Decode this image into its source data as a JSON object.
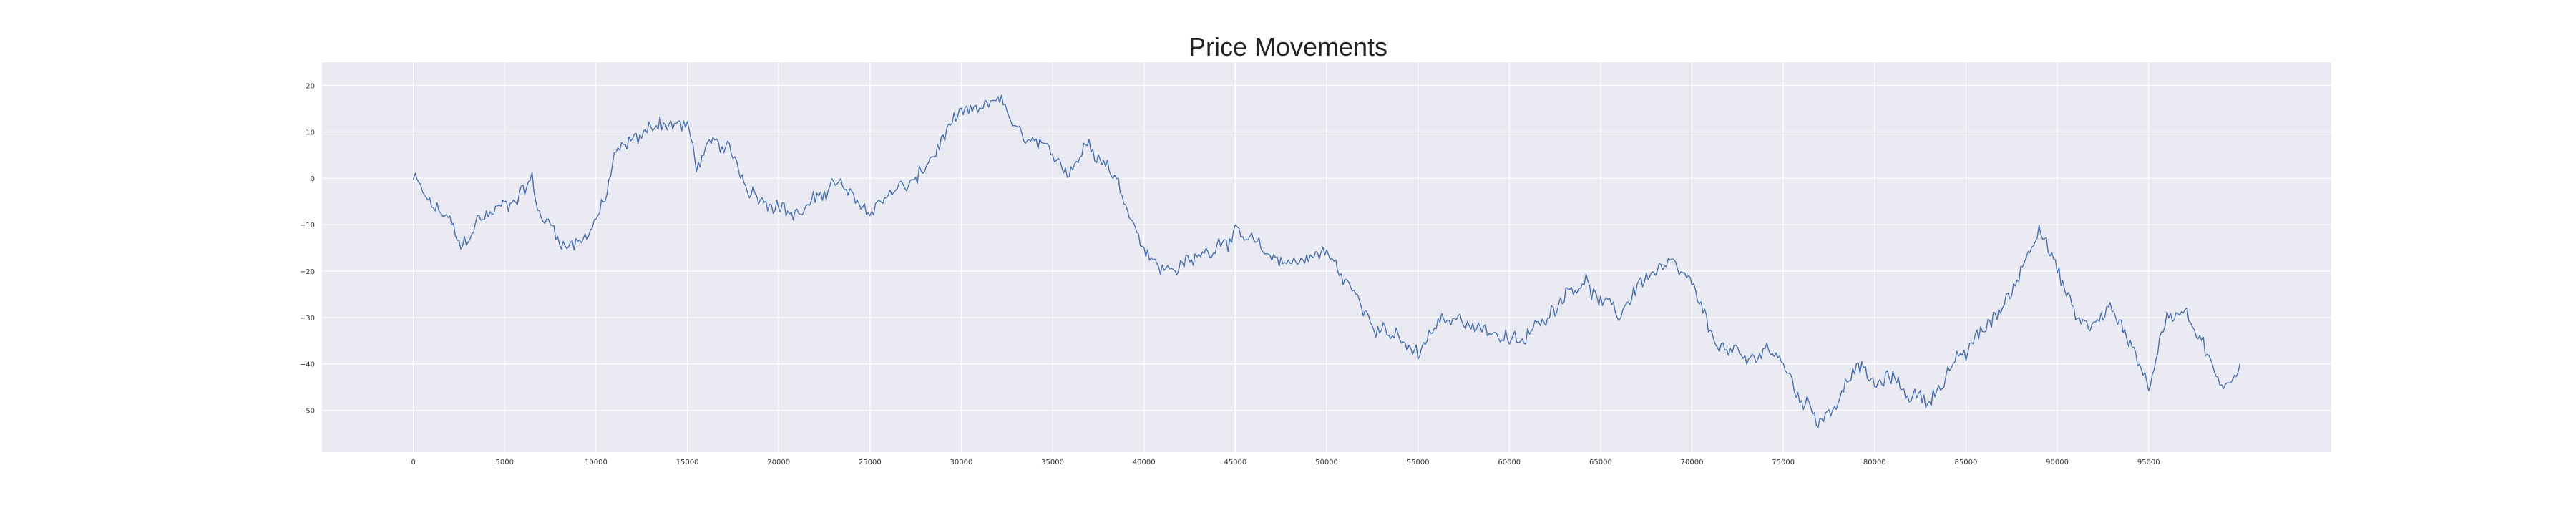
{
  "chart_data": {
    "type": "line",
    "title": "Price Movements",
    "xlabel": "",
    "ylabel": "",
    "xlim": [
      -5000,
      105000
    ],
    "ylim": [
      -59,
      25
    ],
    "xticks": [
      0,
      5000,
      10000,
      15000,
      20000,
      25000,
      30000,
      35000,
      40000,
      45000,
      50000,
      55000,
      60000,
      65000,
      70000,
      75000,
      80000,
      85000,
      90000,
      95000
    ],
    "yticks": [
      20,
      10,
      0,
      -10,
      -20,
      -30,
      -40,
      -50
    ],
    "grid": true,
    "background": "#eaeaf2",
    "grid_color": "#ffffff",
    "series": [
      {
        "color": "#4c72b0",
        "x": [
          0,
          800,
          2000,
          2600,
          3500,
          4500,
          5500,
          6500,
          6800,
          7500,
          8500,
          9500,
          10500,
          11000,
          12000,
          13500,
          15000,
          15500,
          16500,
          17500,
          18500,
          19500,
          21000,
          22000,
          23000,
          24000,
          25000,
          26000,
          27500,
          28500,
          29500,
          31000,
          32000,
          33000,
          34500,
          36000,
          37000,
          38000,
          39000,
          40000,
          41000,
          42500,
          44000,
          45000,
          46500,
          48000,
          50000,
          51000,
          52000,
          53000,
          54000,
          55000,
          56000,
          57500,
          59000,
          60500,
          62000,
          63000,
          64000,
          65000,
          66000,
          67000,
          68000,
          69000,
          70000,
          71000,
          72000,
          73000,
          74000,
          75000,
          76000,
          77000,
          78000,
          79000,
          80000,
          81000,
          82000,
          83000,
          84000,
          85000,
          86000,
          87000,
          88000,
          89000,
          90000,
          91000,
          92000,
          93000,
          94000,
          95000,
          96000,
          97000,
          98000,
          99000,
          100000
        ],
        "y": [
          0,
          -5,
          -9,
          -15,
          -9,
          -7,
          -5,
          0,
          -7,
          -10,
          -15,
          -12,
          -5,
          5,
          8,
          12,
          11,
          3,
          8,
          5,
          -3,
          -5,
          -8,
          -5,
          0,
          -4,
          -7,
          -3,
          -1,
          5,
          12,
          14,
          18,
          10,
          6,
          2,
          8,
          3,
          -5,
          -15,
          -20,
          -18,
          -14,
          -12,
          -16,
          -18,
          -16,
          -22,
          -28,
          -32,
          -35,
          -38,
          -32,
          -30,
          -33,
          -36,
          -30,
          -25,
          -22,
          -27,
          -30,
          -23,
          -20,
          -19,
          -23,
          -34,
          -37,
          -40,
          -36,
          -40,
          -48,
          -52,
          -48,
          -40,
          -45,
          -43,
          -47,
          -48,
          -42,
          -38,
          -32,
          -28,
          -20,
          -10,
          -20,
          -30,
          -32,
          -28,
          -35,
          -45,
          -30,
          -28,
          -36,
          -46,
          -40
        ]
      }
    ]
  }
}
